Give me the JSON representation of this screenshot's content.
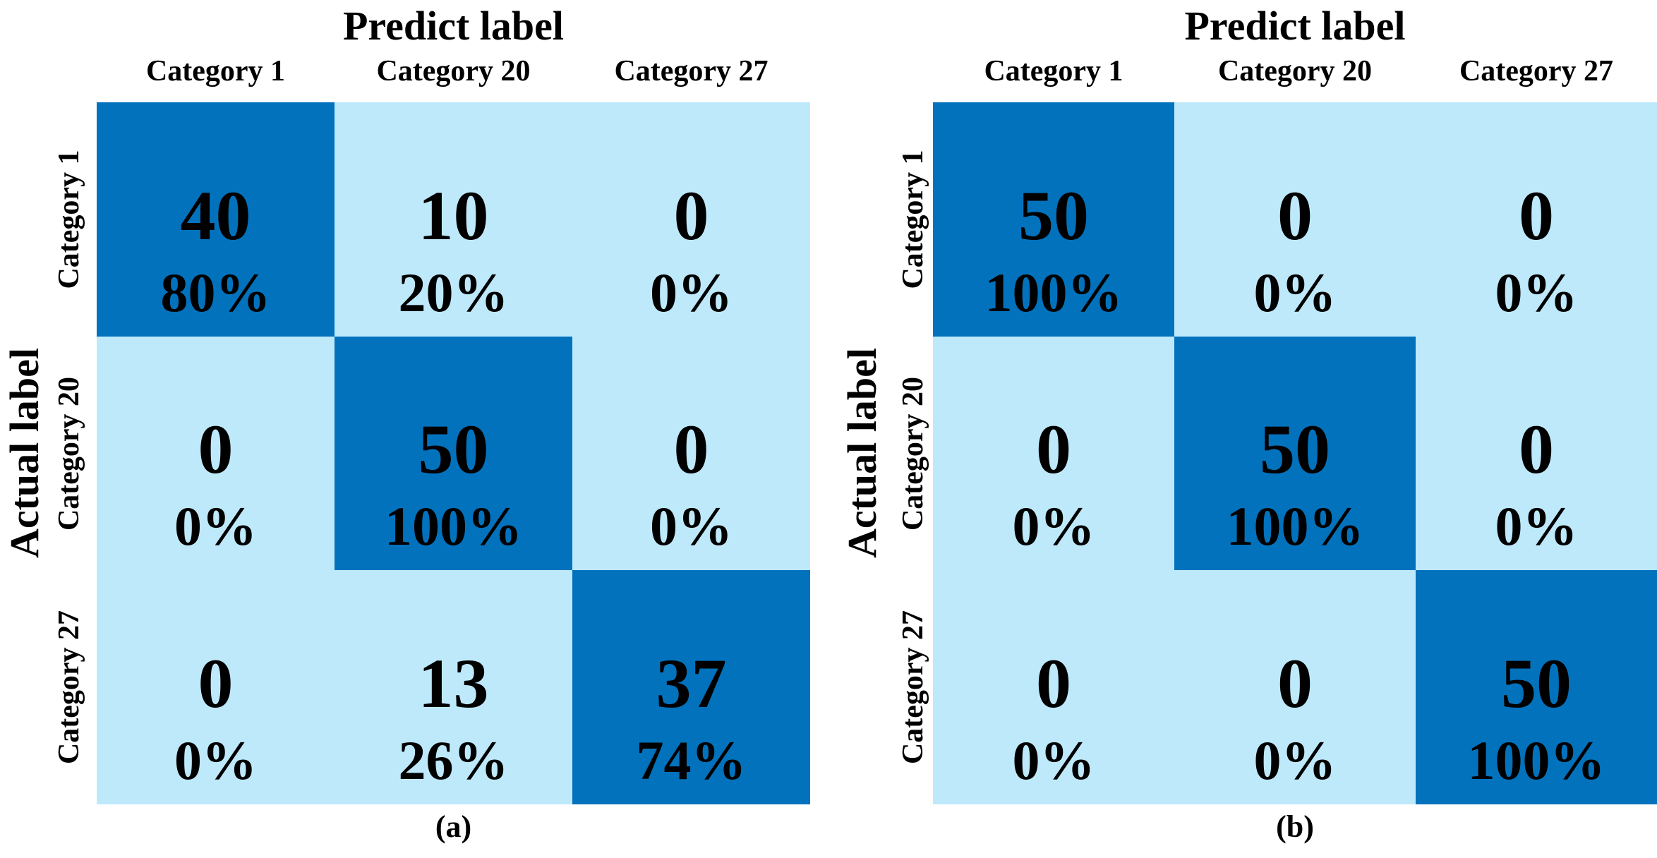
{
  "colors": {
    "diagonal": "#0272BD",
    "off_diagonal": "#BEE9FB",
    "text": "#000000",
    "background": "#FFFFFF"
  },
  "chart_data": [
    {
      "type": "heatmap",
      "panel_caption": "(a)",
      "xlabel": "Predict label",
      "ylabel": "Actual label",
      "x_categories": [
        "Category 1",
        "Category 20",
        "Category 27"
      ],
      "y_categories": [
        "Category 1",
        "Category 20",
        "Category 27"
      ],
      "counts": [
        [
          40,
          10,
          0
        ],
        [
          0,
          50,
          0
        ],
        [
          0,
          13,
          37
        ]
      ],
      "percentages": [
        [
          "80%",
          "20%",
          "0%"
        ],
        [
          "0%",
          "100%",
          "0%"
        ],
        [
          "0%",
          "26%",
          "74%"
        ]
      ],
      "legend": "none",
      "grid": "off",
      "diagonal_highlighted": true
    },
    {
      "type": "heatmap",
      "panel_caption": "(b)",
      "xlabel": "Predict label",
      "ylabel": "Actual label",
      "x_categories": [
        "Category 1",
        "Category 20",
        "Category 27"
      ],
      "y_categories": [
        "Category 1",
        "Category 20",
        "Category 27"
      ],
      "counts": [
        [
          50,
          0,
          0
        ],
        [
          0,
          50,
          0
        ],
        [
          0,
          0,
          50
        ]
      ],
      "percentages": [
        [
          "100%",
          "0%",
          "0%"
        ],
        [
          "0%",
          "100%",
          "0%"
        ],
        [
          "0%",
          "0%",
          "100%"
        ]
      ],
      "legend": "none",
      "grid": "off",
      "diagonal_highlighted": true
    }
  ]
}
